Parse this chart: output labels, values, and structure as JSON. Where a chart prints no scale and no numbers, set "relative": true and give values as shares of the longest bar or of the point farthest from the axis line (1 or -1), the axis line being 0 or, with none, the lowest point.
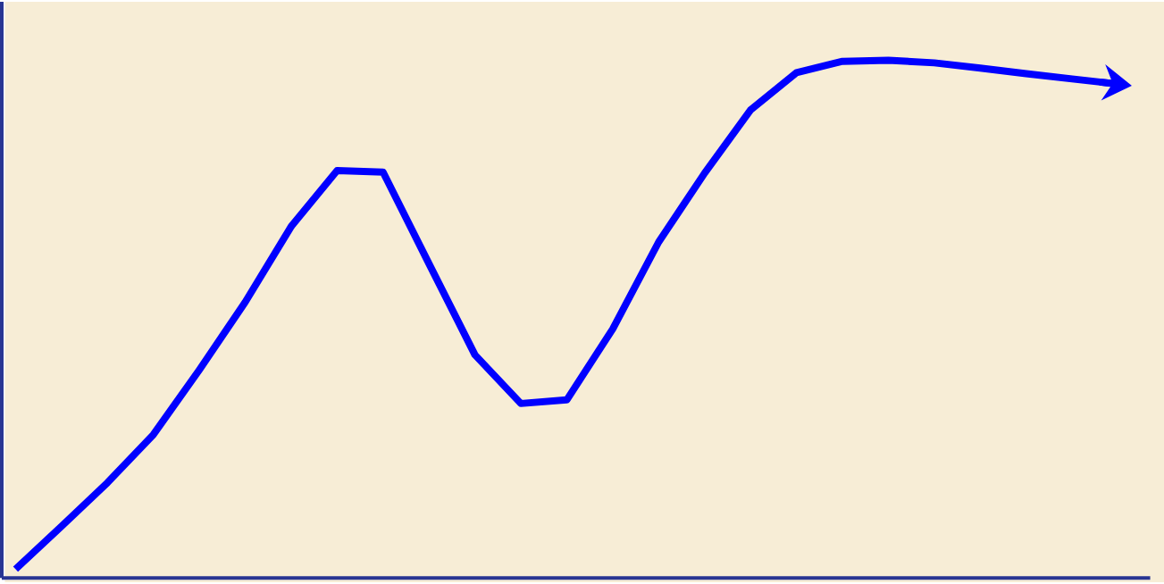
{
  "chart_data": {
    "type": "line",
    "relative": true,
    "color": "#0000ff",
    "categories": [
      null,
      null,
      null,
      null,
      null,
      null,
      null,
      null,
      null,
      null,
      null,
      null,
      null,
      null,
      null,
      null,
      null,
      null,
      null,
      null,
      null,
      null,
      null,
      null,
      null
    ],
    "values": [
      0.017,
      0.1,
      0.184,
      0.277,
      0.402,
      0.533,
      0.679,
      0.787,
      0.784,
      0.607,
      0.431,
      0.337,
      0.344,
      0.481,
      0.649,
      0.782,
      0.904,
      0.976,
      0.998,
      1.0,
      0.995,
      0.985,
      0.974,
      0.964,
      0.954
    ]
  }
}
